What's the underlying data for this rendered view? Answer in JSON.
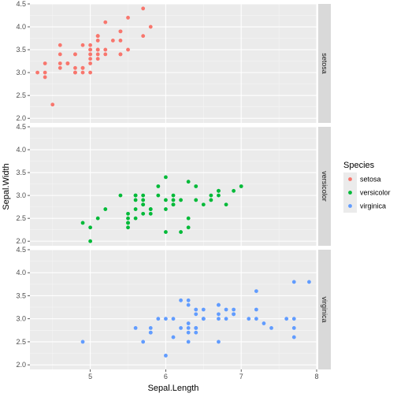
{
  "chart_data": {
    "type": "scatter",
    "xlabel": "Sepal.Length",
    "ylabel": "Sepal.Width",
    "xlim": [
      4.2,
      8.0
    ],
    "ylim": [
      1.9,
      4.5
    ],
    "x_ticks": [
      5,
      6,
      7,
      8
    ],
    "y_ticks": [
      2.0,
      2.5,
      3.0,
      3.5,
      4.0,
      4.5
    ],
    "grid": true,
    "facets": [
      "setosa",
      "versicolor",
      "virginica"
    ],
    "legend": {
      "title": "Species",
      "position": "right"
    },
    "series": [
      {
        "name": "setosa",
        "color": "#F8766D",
        "points": [
          [
            5.1,
            3.5
          ],
          [
            4.9,
            3.0
          ],
          [
            4.7,
            3.2
          ],
          [
            4.6,
            3.1
          ],
          [
            5.0,
            3.6
          ],
          [
            5.4,
            3.9
          ],
          [
            4.6,
            3.4
          ],
          [
            5.0,
            3.4
          ],
          [
            4.4,
            2.9
          ],
          [
            4.9,
            3.1
          ],
          [
            5.4,
            3.7
          ],
          [
            4.8,
            3.4
          ],
          [
            4.8,
            3.0
          ],
          [
            4.3,
            3.0
          ],
          [
            5.8,
            4.0
          ],
          [
            5.7,
            4.4
          ],
          [
            5.4,
            3.9
          ],
          [
            5.1,
            3.5
          ],
          [
            5.7,
            3.8
          ],
          [
            5.1,
            3.8
          ],
          [
            5.4,
            3.4
          ],
          [
            5.1,
            3.7
          ],
          [
            4.6,
            3.6
          ],
          [
            5.1,
            3.3
          ],
          [
            4.8,
            3.4
          ],
          [
            5.0,
            3.0
          ],
          [
            5.0,
            3.4
          ],
          [
            5.2,
            3.5
          ],
          [
            5.2,
            3.4
          ],
          [
            4.7,
            3.2
          ],
          [
            4.8,
            3.1
          ],
          [
            5.4,
            3.4
          ],
          [
            5.2,
            4.1
          ],
          [
            5.5,
            4.2
          ],
          [
            4.9,
            3.1
          ],
          [
            5.0,
            3.2
          ],
          [
            5.5,
            3.5
          ],
          [
            4.9,
            3.6
          ],
          [
            4.4,
            3.0
          ],
          [
            5.1,
            3.4
          ],
          [
            5.0,
            3.5
          ],
          [
            4.5,
            2.3
          ],
          [
            4.4,
            3.2
          ],
          [
            5.0,
            3.5
          ],
          [
            5.1,
            3.8
          ],
          [
            4.8,
            3.0
          ],
          [
            5.1,
            3.8
          ],
          [
            4.6,
            3.2
          ],
          [
            5.3,
            3.7
          ],
          [
            5.0,
            3.3
          ]
        ]
      },
      {
        "name": "versicolor",
        "color": "#00BA38",
        "points": [
          [
            7.0,
            3.2
          ],
          [
            6.4,
            3.2
          ],
          [
            6.9,
            3.1
          ],
          [
            5.5,
            2.3
          ],
          [
            6.5,
            2.8
          ],
          [
            5.7,
            2.8
          ],
          [
            6.3,
            3.3
          ],
          [
            4.9,
            2.4
          ],
          [
            6.6,
            2.9
          ],
          [
            5.2,
            2.7
          ],
          [
            5.0,
            2.0
          ],
          [
            5.9,
            3.0
          ],
          [
            6.0,
            2.2
          ],
          [
            6.1,
            2.9
          ],
          [
            5.6,
            2.9
          ],
          [
            6.7,
            3.1
          ],
          [
            5.6,
            3.0
          ],
          [
            5.8,
            2.7
          ],
          [
            6.2,
            2.2
          ],
          [
            5.6,
            2.5
          ],
          [
            5.9,
            3.2
          ],
          [
            6.1,
            2.8
          ],
          [
            6.3,
            2.5
          ],
          [
            6.1,
            2.8
          ],
          [
            6.4,
            2.9
          ],
          [
            6.6,
            3.0
          ],
          [
            6.8,
            2.8
          ],
          [
            6.7,
            3.0
          ],
          [
            6.0,
            2.9
          ],
          [
            5.7,
            2.6
          ],
          [
            5.5,
            2.4
          ],
          [
            5.5,
            2.4
          ],
          [
            5.8,
            2.7
          ],
          [
            6.0,
            2.7
          ],
          [
            5.4,
            3.0
          ],
          [
            6.0,
            3.4
          ],
          [
            6.7,
            3.1
          ],
          [
            6.3,
            2.3
          ],
          [
            5.6,
            3.0
          ],
          [
            5.5,
            2.5
          ],
          [
            5.5,
            2.6
          ],
          [
            6.1,
            3.0
          ],
          [
            5.8,
            2.6
          ],
          [
            5.0,
            2.3
          ],
          [
            5.6,
            2.7
          ],
          [
            5.7,
            3.0
          ],
          [
            5.7,
            2.9
          ],
          [
            6.2,
            2.9
          ],
          [
            5.1,
            2.5
          ],
          [
            5.7,
            2.8
          ]
        ]
      },
      {
        "name": "virginica",
        "color": "#619CFF",
        "points": [
          [
            6.3,
            3.3
          ],
          [
            5.8,
            2.7
          ],
          [
            7.1,
            3.0
          ],
          [
            6.3,
            2.9
          ],
          [
            6.5,
            3.0
          ],
          [
            7.6,
            3.0
          ],
          [
            4.9,
            2.5
          ],
          [
            7.3,
            2.9
          ],
          [
            6.7,
            2.5
          ],
          [
            7.2,
            3.6
          ],
          [
            6.5,
            3.2
          ],
          [
            6.4,
            2.7
          ],
          [
            6.8,
            3.0
          ],
          [
            5.7,
            2.5
          ],
          [
            5.8,
            2.8
          ],
          [
            6.4,
            3.2
          ],
          [
            6.5,
            3.0
          ],
          [
            7.7,
            3.8
          ],
          [
            7.7,
            2.6
          ],
          [
            6.0,
            2.2
          ],
          [
            6.9,
            3.2
          ],
          [
            5.6,
            2.8
          ],
          [
            7.7,
            2.8
          ],
          [
            6.3,
            2.7
          ],
          [
            6.7,
            3.3
          ],
          [
            7.2,
            3.2
          ],
          [
            6.2,
            2.8
          ],
          [
            6.1,
            3.0
          ],
          [
            6.4,
            2.8
          ],
          [
            7.2,
            3.0
          ],
          [
            7.4,
            2.8
          ],
          [
            7.9,
            3.8
          ],
          [
            6.4,
            2.8
          ],
          [
            6.3,
            2.8
          ],
          [
            6.1,
            2.6
          ],
          [
            7.7,
            3.0
          ],
          [
            6.3,
            3.4
          ],
          [
            6.4,
            3.1
          ],
          [
            6.0,
            3.0
          ],
          [
            6.9,
            3.1
          ],
          [
            6.7,
            3.1
          ],
          [
            6.9,
            3.1
          ],
          [
            5.8,
            2.7
          ],
          [
            6.8,
            3.2
          ],
          [
            6.7,
            3.3
          ],
          [
            6.7,
            3.0
          ],
          [
            6.3,
            2.5
          ],
          [
            6.5,
            3.0
          ],
          [
            6.2,
            3.4
          ],
          [
            5.9,
            3.0
          ]
        ]
      }
    ]
  }
}
